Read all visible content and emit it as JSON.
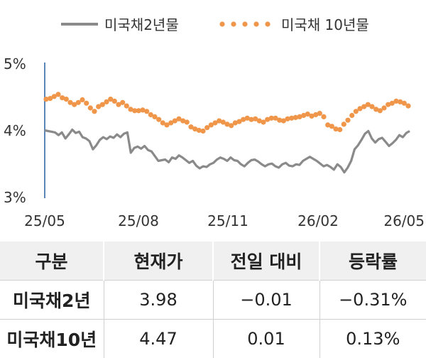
{
  "chart_data": {
    "type": "line",
    "yticks": [
      "5%",
      "4%",
      "3%"
    ],
    "ylim": [
      3.0,
      5.0
    ],
    "xticks": [
      "25/05",
      "25/08",
      "25/11",
      "26/02",
      "26/05"
    ],
    "legend_position": "top",
    "series": [
      {
        "name": "미국채2년물",
        "style": "line",
        "color": "#8a8a8a",
        "values": [
          4.0,
          3.99,
          3.98,
          3.97,
          3.93,
          3.97,
          3.88,
          3.94,
          4.01,
          3.96,
          3.98,
          3.9,
          3.88,
          3.84,
          3.72,
          3.78,
          3.86,
          3.9,
          3.87,
          3.91,
          3.89,
          3.94,
          3.9,
          3.95,
          3.97,
          3.67,
          3.74,
          3.76,
          3.73,
          3.77,
          3.71,
          3.69,
          3.62,
          3.55,
          3.56,
          3.57,
          3.53,
          3.6,
          3.58,
          3.63,
          3.6,
          3.56,
          3.52,
          3.55,
          3.48,
          3.44,
          3.47,
          3.46,
          3.5,
          3.52,
          3.57,
          3.6,
          3.58,
          3.55,
          3.6,
          3.56,
          3.55,
          3.5,
          3.47,
          3.52,
          3.56,
          3.57,
          3.54,
          3.5,
          3.47,
          3.5,
          3.51,
          3.47,
          3.45,
          3.5,
          3.52,
          3.48,
          3.47,
          3.5,
          3.49,
          3.55,
          3.58,
          3.61,
          3.58,
          3.55,
          3.51,
          3.47,
          3.49,
          3.46,
          3.42,
          3.5,
          3.46,
          3.38,
          3.45,
          3.55,
          3.72,
          3.78,
          3.86,
          3.95,
          3.99,
          3.88,
          3.82,
          3.87,
          3.89,
          3.83,
          3.77,
          3.81,
          3.86,
          3.93,
          3.9,
          3.96,
          3.99
        ]
      },
      {
        "name": "미국채 10년물",
        "style": "dots",
        "color": "#f0964a",
        "values": [
          4.46,
          4.47,
          4.5,
          4.53,
          4.48,
          4.46,
          4.41,
          4.38,
          4.41,
          4.45,
          4.4,
          4.33,
          4.28,
          4.35,
          4.38,
          4.42,
          4.46,
          4.43,
          4.38,
          4.41,
          4.36,
          4.31,
          4.29,
          4.29,
          4.3,
          4.28,
          4.23,
          4.2,
          4.16,
          4.11,
          4.08,
          4.11,
          4.14,
          4.17,
          4.14,
          4.12,
          4.05,
          4.02,
          4.0,
          3.99,
          4.04,
          4.08,
          4.11,
          4.14,
          4.12,
          4.09,
          4.07,
          4.11,
          4.13,
          4.16,
          4.18,
          4.16,
          4.17,
          4.14,
          4.12,
          4.16,
          4.18,
          4.18,
          4.15,
          4.14,
          4.17,
          4.18,
          4.19,
          4.2,
          4.22,
          4.24,
          4.21,
          4.23,
          4.25,
          4.2,
          4.08,
          4.06,
          4.02,
          4.01,
          4.09,
          4.15,
          4.22,
          4.28,
          4.32,
          4.35,
          4.38,
          4.35,
          4.31,
          4.29,
          4.33,
          4.38,
          4.4,
          4.43,
          4.42,
          4.4,
          4.36
        ]
      }
    ]
  },
  "table": {
    "headers": [
      "구분",
      "현재가",
      "전일 대비",
      "등락률"
    ],
    "rows": [
      {
        "name": "미국채2년",
        "price": "3.98",
        "change": "−0.01",
        "rate": "−0.31%"
      },
      {
        "name": "미국채10년",
        "price": "4.47",
        "change": "0.01",
        "rate": "0.13%"
      }
    ]
  }
}
